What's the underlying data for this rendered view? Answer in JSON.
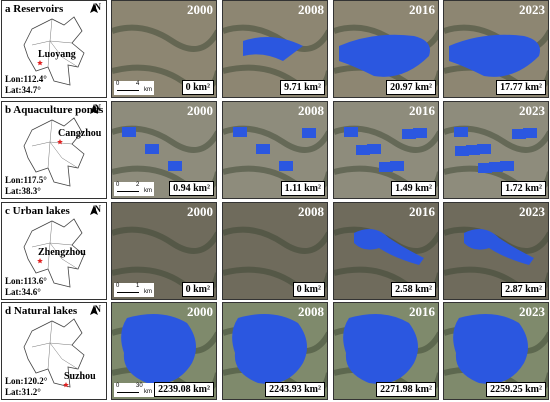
{
  "north": "N",
  "rows": [
    {
      "letter": "a",
      "title": "Reservoirs",
      "city": "Luoyang",
      "lon": "Lon:112.4°",
      "lat": "Lat:34.7°",
      "scale": [
        "0",
        "4",
        "km"
      ],
      "panels": [
        {
          "year": "2000",
          "area": "0 km²"
        },
        {
          "year": "2008",
          "area": "9.71 km²"
        },
        {
          "year": "2016",
          "area": "20.97 km²"
        },
        {
          "year": "2023",
          "area": "17.77 km²"
        }
      ]
    },
    {
      "letter": "b",
      "title": "Aquaculture ponds",
      "city": "Cangzhou",
      "lon": "Lon:117.5°",
      "lat": "Lat:38.3°",
      "scale": [
        "0",
        "2",
        "km"
      ],
      "panels": [
        {
          "year": "2000",
          "area": "0.94 km²"
        },
        {
          "year": "2008",
          "area": "1.11 km²"
        },
        {
          "year": "2016",
          "area": "1.49 km²"
        },
        {
          "year": "2023",
          "area": "1.72 km²"
        }
      ]
    },
    {
      "letter": "c",
      "title": "Urban lakes",
      "city": "Zhengzhou",
      "lon": "Lon:113.6°",
      "lat": "Lat:34.6°",
      "scale": [
        "0",
        "1",
        "km"
      ],
      "panels": [
        {
          "year": "2000",
          "area": "0 km²"
        },
        {
          "year": "2008",
          "area": "0 km²"
        },
        {
          "year": "2016",
          "area": "2.58 km²"
        },
        {
          "year": "2023",
          "area": "2.87 km²"
        }
      ]
    },
    {
      "letter": "d",
      "title": "Natural lakes",
      "city": "Suzhou",
      "lon": "Lon:120.2°",
      "lat": "Lat:31.2°",
      "scale": [
        "0",
        "30",
        "km"
      ],
      "panels": [
        {
          "year": "2000",
          "area": "2239.08 km²"
        },
        {
          "year": "2008",
          "area": "2243.93 km²"
        },
        {
          "year": "2016",
          "area": "2271.98 km²"
        },
        {
          "year": "2023",
          "area": "2259.25 km²"
        }
      ]
    }
  ]
}
